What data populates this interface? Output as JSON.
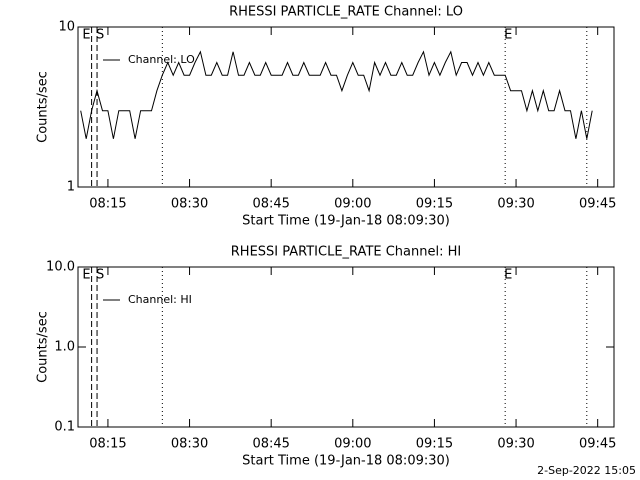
{
  "chart_data": [
    {
      "type": "line",
      "title": "RHESSI PARTICLE_RATE Channel: LO",
      "xlabel": "Start Time (19-Jan-18 08:09:30)",
      "ylabel": "Counts/sec",
      "log_y": true,
      "ylim": [
        1,
        10
      ],
      "yticks": [
        1,
        10
      ],
      "xlim": [
        "08:09:30",
        "09:48"
      ],
      "xticks": [
        "08:15",
        "08:30",
        "08:45",
        "09:00",
        "09:15",
        "09:30",
        "09:45"
      ],
      "legend": "top-left",
      "markers": [
        {
          "x": "08:12",
          "label": "E",
          "style": "dashed"
        },
        {
          "x": "08:13",
          "label": "S",
          "style": "dashed"
        },
        {
          "x": "08:25",
          "style": "dotted"
        },
        {
          "x": "09:28",
          "label": "E",
          "style": "dotted"
        },
        {
          "x": "09:43",
          "style": "dotted"
        }
      ],
      "x": [
        "08:10",
        "08:11",
        "08:12",
        "08:13",
        "08:14",
        "08:15",
        "08:16",
        "08:17",
        "08:18",
        "08:19",
        "08:20",
        "08:21",
        "08:22",
        "08:23",
        "08:24",
        "08:25",
        "08:26",
        "08:27",
        "08:28",
        "08:29",
        "08:30",
        "08:31",
        "08:32",
        "08:33",
        "08:34",
        "08:35",
        "08:36",
        "08:37",
        "08:38",
        "08:39",
        "08:40",
        "08:41",
        "08:42",
        "08:43",
        "08:44",
        "08:45",
        "08:46",
        "08:47",
        "08:48",
        "08:49",
        "08:50",
        "08:51",
        "08:52",
        "08:53",
        "08:54",
        "08:55",
        "08:56",
        "08:57",
        "08:58",
        "08:59",
        "09:00",
        "09:01",
        "09:02",
        "09:03",
        "09:04",
        "09:05",
        "09:06",
        "09:07",
        "09:08",
        "09:09",
        "09:10",
        "09:11",
        "09:12",
        "09:13",
        "09:14",
        "09:15",
        "09:16",
        "09:17",
        "09:18",
        "09:19",
        "09:20",
        "09:21",
        "09:22",
        "09:23",
        "09:24",
        "09:25",
        "09:26",
        "09:27",
        "09:28",
        "09:29",
        "09:30",
        "09:31",
        "09:32",
        "09:33",
        "09:34",
        "09:35",
        "09:36",
        "09:37",
        "09:38",
        "09:39",
        "09:40",
        "09:41",
        "09:42",
        "09:43",
        "09:44"
      ],
      "series": [
        {
          "name": "Channel: LO",
          "color": "#000000",
          "values": [
            3,
            2,
            3,
            4,
            3,
            3,
            2,
            3,
            3,
            3,
            2,
            3,
            3,
            3,
            4,
            5,
            6,
            5,
            6,
            5,
            5,
            6,
            7,
            5,
            5,
            6,
            5,
            5,
            7,
            5,
            5,
            6,
            5,
            5,
            6,
            5,
            5,
            5,
            6,
            5,
            5,
            6,
            5,
            5,
            5,
            6,
            5,
            5,
            4,
            5,
            6,
            5,
            5,
            4,
            6,
            5,
            6,
            5,
            5,
            6,
            5,
            5,
            6,
            7,
            5,
            6,
            5,
            6,
            7,
            5,
            6,
            6,
            5,
            6,
            5,
            6,
            5,
            5,
            5,
            4,
            4,
            4,
            3,
            4,
            3,
            4,
            3,
            3,
            4,
            3,
            3,
            2,
            3,
            2,
            3
          ]
        }
      ]
    },
    {
      "type": "line",
      "title": "RHESSI PARTICLE_RATE Channel: HI",
      "xlabel": "Start Time (19-Jan-18 08:09:30)",
      "ylabel": "Counts/sec",
      "log_y": true,
      "ylim": [
        0.1,
        10
      ],
      "yticks": [
        {
          "value": 0.1,
          "label": "0.1"
        },
        {
          "value": 1,
          "label": "1.0"
        },
        {
          "value": 10,
          "label": "10.0"
        }
      ],
      "xlim": [
        "08:09:30",
        "09:48"
      ],
      "xticks": [
        "08:15",
        "08:30",
        "08:45",
        "09:00",
        "09:15",
        "09:30",
        "09:45"
      ],
      "legend": "top-left",
      "markers": [
        {
          "x": "08:12",
          "label": "E",
          "style": "dashed"
        },
        {
          "x": "08:13",
          "label": "S",
          "style": "dashed"
        },
        {
          "x": "08:25",
          "style": "dotted"
        },
        {
          "x": "09:28",
          "label": "E",
          "style": "dotted"
        },
        {
          "x": "09:43",
          "style": "dotted"
        }
      ],
      "series": [
        {
          "name": "Channel: HI",
          "color": "#000000",
          "values": []
        }
      ]
    }
  ],
  "footer": "2-Sep-2022 15:05"
}
